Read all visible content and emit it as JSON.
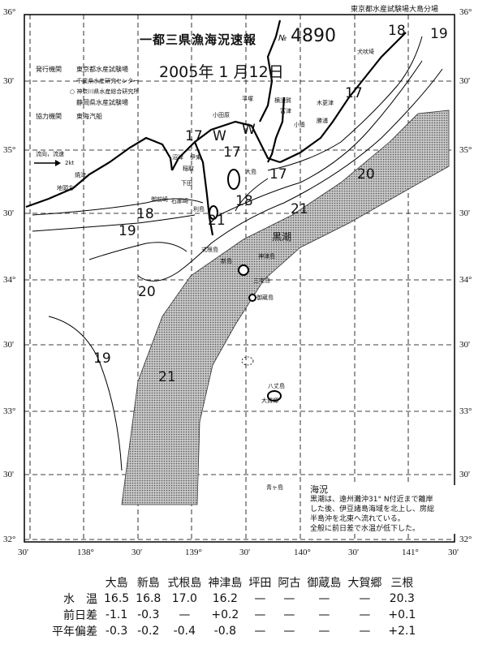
{
  "header": {
    "title": "一都三県漁海況速報",
    "number_prefix": "№",
    "number": "4890",
    "date": "2005年 1 月12日",
    "top_credit": "東京都水産試験場大島分場",
    "publisher_label": "発行機関",
    "publishers": [
      "東京都水産試験場",
      "千葉県水産研究センター",
      "○ 神奈川県水産総合研究所",
      "静岡県水産試験場"
    ],
    "cooperator_label": "協力機関",
    "cooperator": "東海汽船",
    "legend_flow": "流向，流速",
    "legend_speed": "2kt"
  },
  "axes": {
    "lat_labels": [
      "36°",
      "30'",
      "35°",
      "30'",
      "34°",
      "30'",
      "33°",
      "30'",
      "32°"
    ],
    "lon_labels": [
      "30'",
      "138°",
      "30'",
      "139°",
      "30'",
      "140°",
      "30'",
      "141°",
      "30'"
    ]
  },
  "map": {
    "current_label": "黒潮",
    "current_color": "#9a9a9a",
    "isotherm_labels": [
      "18",
      "19",
      "17",
      "17",
      "18",
      "20",
      "21",
      "18",
      "19",
      "17",
      "20",
      "21",
      "19",
      "21",
      "W",
      "W",
      "17"
    ],
    "places": [
      "犬吠埼",
      "木更津",
      "小湊",
      "勝浦",
      "平塚",
      "横須賀",
      "富津",
      "小田原",
      "伊東",
      "沼津",
      "焼津",
      "稲取",
      "下田",
      "石廊崎",
      "御前崎",
      "地頭方",
      "大島",
      "利島",
      "式根島",
      "新島",
      "神津島",
      "三宅島",
      "御蔵島",
      "八丈島",
      "大賀郷",
      "青ヶ島"
    ]
  },
  "conditions": {
    "heading": "海況",
    "lines": [
      "黒潮は、遠州灘沖31° N付近まで離岸",
      "した後、伊豆諸島海域を北上し、房総",
      "半島沖を北東へ流れている。",
      "全般に前日差で水温が低下した。"
    ]
  },
  "table": {
    "stations": [
      "大島",
      "新島",
      "式根島",
      "神津島",
      "坪田",
      "阿古",
      "御蔵島",
      "大賀郷",
      "三根"
    ],
    "rows": [
      {
        "label": "水　温",
        "values": [
          "16.5",
          "16.8",
          "17.0",
          "16.2",
          "—",
          "—",
          "—",
          "—",
          "20.3"
        ]
      },
      {
        "label": "前日差",
        "values": [
          "-1.1",
          "-0.3",
          "—",
          "+0.2",
          "—",
          "—",
          "—",
          "—",
          "+0.1"
        ]
      },
      {
        "label": "平年偏差",
        "values": [
          "-0.3",
          "-0.2",
          "-0.4",
          "-0.8",
          "—",
          "—",
          "—",
          "—",
          "+2.1"
        ]
      }
    ]
  }
}
